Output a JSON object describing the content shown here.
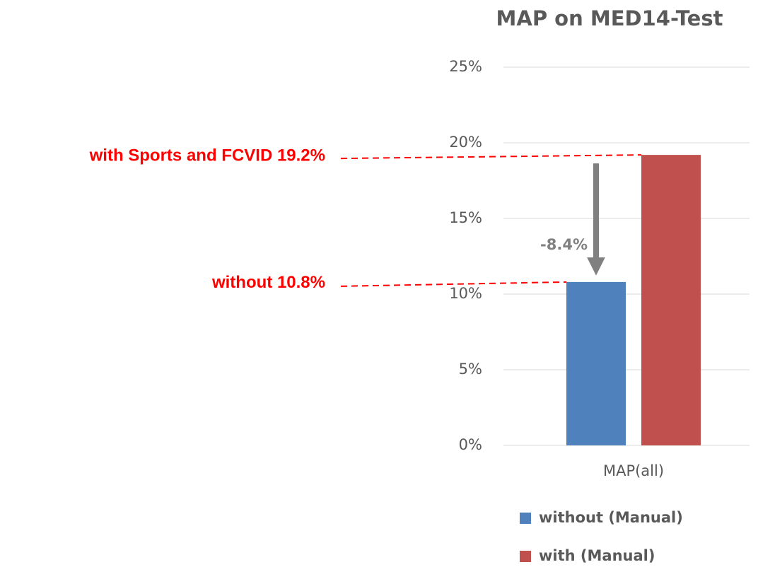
{
  "chart_data": {
    "type": "bar",
    "title": "MAP on MED14-Test",
    "categories": [
      "MAP(all)"
    ],
    "series": [
      {
        "name": "without (Manual)",
        "color": "#4f81bd",
        "values": [
          10.8
        ]
      },
      {
        "name": "with (Manual)",
        "color": "#c0504d",
        "values": [
          19.2
        ]
      }
    ],
    "ylim": [
      0,
      25
    ],
    "yticks": [
      {
        "value": 0,
        "label": "0%"
      },
      {
        "value": 5,
        "label": "5%"
      },
      {
        "value": 10,
        "label": "10%"
      },
      {
        "value": 15,
        "label": "15%"
      },
      {
        "value": 20,
        "label": "20%"
      },
      {
        "value": 25,
        "label": "25%"
      }
    ],
    "grid": true,
    "annotations": [
      "with Sports and FCVID 19.2%",
      "without 10.8%",
      "-8.4%"
    ]
  }
}
